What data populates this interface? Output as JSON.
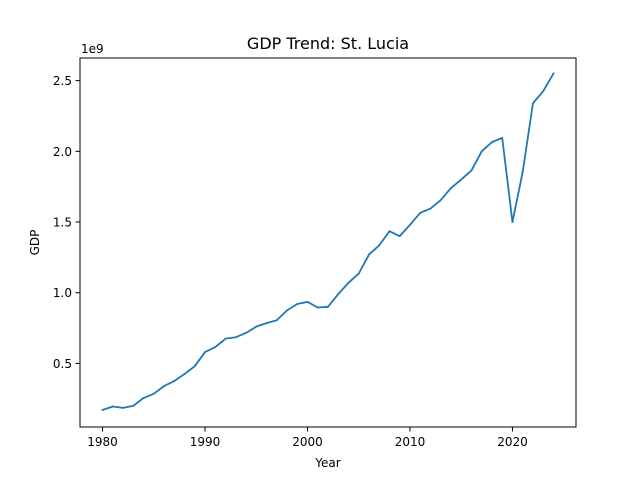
{
  "chart_data": {
    "type": "line",
    "title": "GDP Trend: St. Lucia",
    "xlabel": "Year",
    "ylabel": "GDP",
    "offset_label": "1e9",
    "xlim": [
      1977.8,
      2026.2
    ],
    "ylim": [
      50000000,
      2660000000
    ],
    "x_ticks": [
      1980,
      1990,
      2000,
      2010,
      2020
    ],
    "y_ticks": [
      {
        "value": 500000000,
        "label": "0.5"
      },
      {
        "value": 1000000000,
        "label": "1.0"
      },
      {
        "value": 1500000000,
        "label": "1.5"
      },
      {
        "value": 2000000000,
        "label": "2.0"
      },
      {
        "value": 2500000000,
        "label": "2.5"
      }
    ],
    "grid": false,
    "line_color": "#1f77b4",
    "x": [
      1980,
      1981,
      1982,
      1983,
      1984,
      1985,
      1986,
      1987,
      1988,
      1989,
      1990,
      1991,
      1992,
      1993,
      1994,
      1995,
      1996,
      1997,
      1998,
      1999,
      2000,
      2001,
      2002,
      2003,
      2004,
      2005,
      2006,
      2007,
      2008,
      2009,
      2010,
      2011,
      2012,
      2013,
      2014,
      2015,
      2016,
      2017,
      2018,
      2019,
      2020,
      2021,
      2022,
      2023,
      2024
    ],
    "y": [
      170000000,
      195000000,
      185000000,
      200000000,
      255000000,
      285000000,
      340000000,
      375000000,
      425000000,
      480000000,
      580000000,
      615000000,
      675000000,
      685000000,
      715000000,
      760000000,
      785000000,
      805000000,
      875000000,
      920000000,
      935000000,
      895000000,
      900000000,
      990000000,
      1070000000,
      1135000000,
      1270000000,
      1335000000,
      1435000000,
      1400000000,
      1480000000,
      1565000000,
      1595000000,
      1655000000,
      1740000000,
      1800000000,
      1865000000,
      2000000000,
      2065000000,
      2095000000,
      1500000000,
      1855000000,
      2340000000,
      2425000000,
      2550000000
    ]
  }
}
